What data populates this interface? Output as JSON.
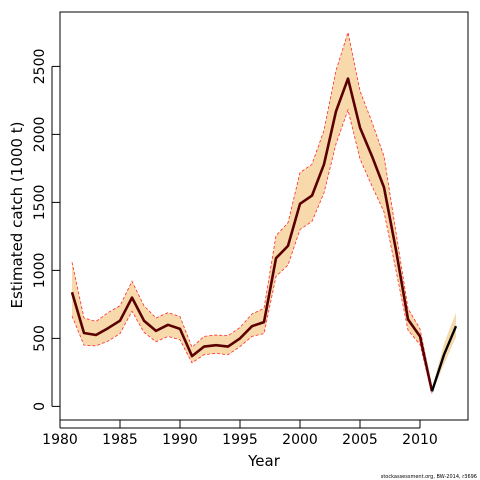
{
  "chart_data": {
    "type": "line",
    "xlabel": "Year",
    "ylabel": "Estimated catch (1000 t)",
    "xlim": [
      1980,
      2014
    ],
    "ylim": [
      -100,
      2900
    ],
    "xticks": [
      1980,
      1985,
      1990,
      1995,
      2000,
      2005,
      2010
    ],
    "yticks": [
      0,
      500,
      1000,
      1500,
      2000,
      2500
    ],
    "xtick_labels": [
      "1980",
      "1985",
      "1990",
      "1995",
      "2000",
      "2005",
      "2010"
    ],
    "ytick_labels": [
      "0",
      "500",
      "1000",
      "1500",
      "2000",
      "2500"
    ],
    "grid": false,
    "footnote": "stockassessment.org, BW-2014, r3696",
    "colors": {
      "estimate": "#5a0000",
      "band_fill": "#f7d9ab",
      "band_edge": "#ff2a2a",
      "observed": "#000000"
    },
    "x": [
      1981,
      1982,
      1983,
      1984,
      1985,
      1986,
      1987,
      1988,
      1989,
      1990,
      1991,
      1992,
      1993,
      1994,
      1995,
      1996,
      1997,
      1998,
      1999,
      2000,
      2001,
      2002,
      2003,
      2004,
      2005,
      2006,
      2007,
      2008,
      2009,
      2010,
      2011
    ],
    "estimate": [
      840,
      540,
      525,
      575,
      630,
      800,
      630,
      555,
      600,
      570,
      370,
      440,
      450,
      440,
      500,
      590,
      620,
      1090,
      1180,
      1490,
      1550,
      1780,
      2170,
      2410,
      2050,
      1840,
      1610,
      1150,
      640,
      515,
      110
    ],
    "upper": [
      1060,
      650,
      625,
      690,
      740,
      920,
      740,
      650,
      690,
      660,
      435,
      515,
      525,
      520,
      580,
      680,
      720,
      1255,
      1350,
      1720,
      1780,
      2030,
      2470,
      2750,
      2320,
      2090,
      1840,
      1280,
      720,
      570,
      130
    ],
    "lower": [
      665,
      450,
      445,
      480,
      535,
      700,
      545,
      475,
      515,
      490,
      320,
      380,
      390,
      380,
      440,
      515,
      535,
      955,
      1040,
      1300,
      1360,
      1570,
      1930,
      2180,
      1820,
      1620,
      1430,
      1000,
      560,
      455,
      95
    ],
    "observed": {
      "x": [
        2011,
        2012,
        2013
      ],
      "y": [
        110,
        380,
        590
      ],
      "upper": [
        130,
        460,
        690
      ],
      "lower": [
        95,
        310,
        510
      ]
    }
  }
}
